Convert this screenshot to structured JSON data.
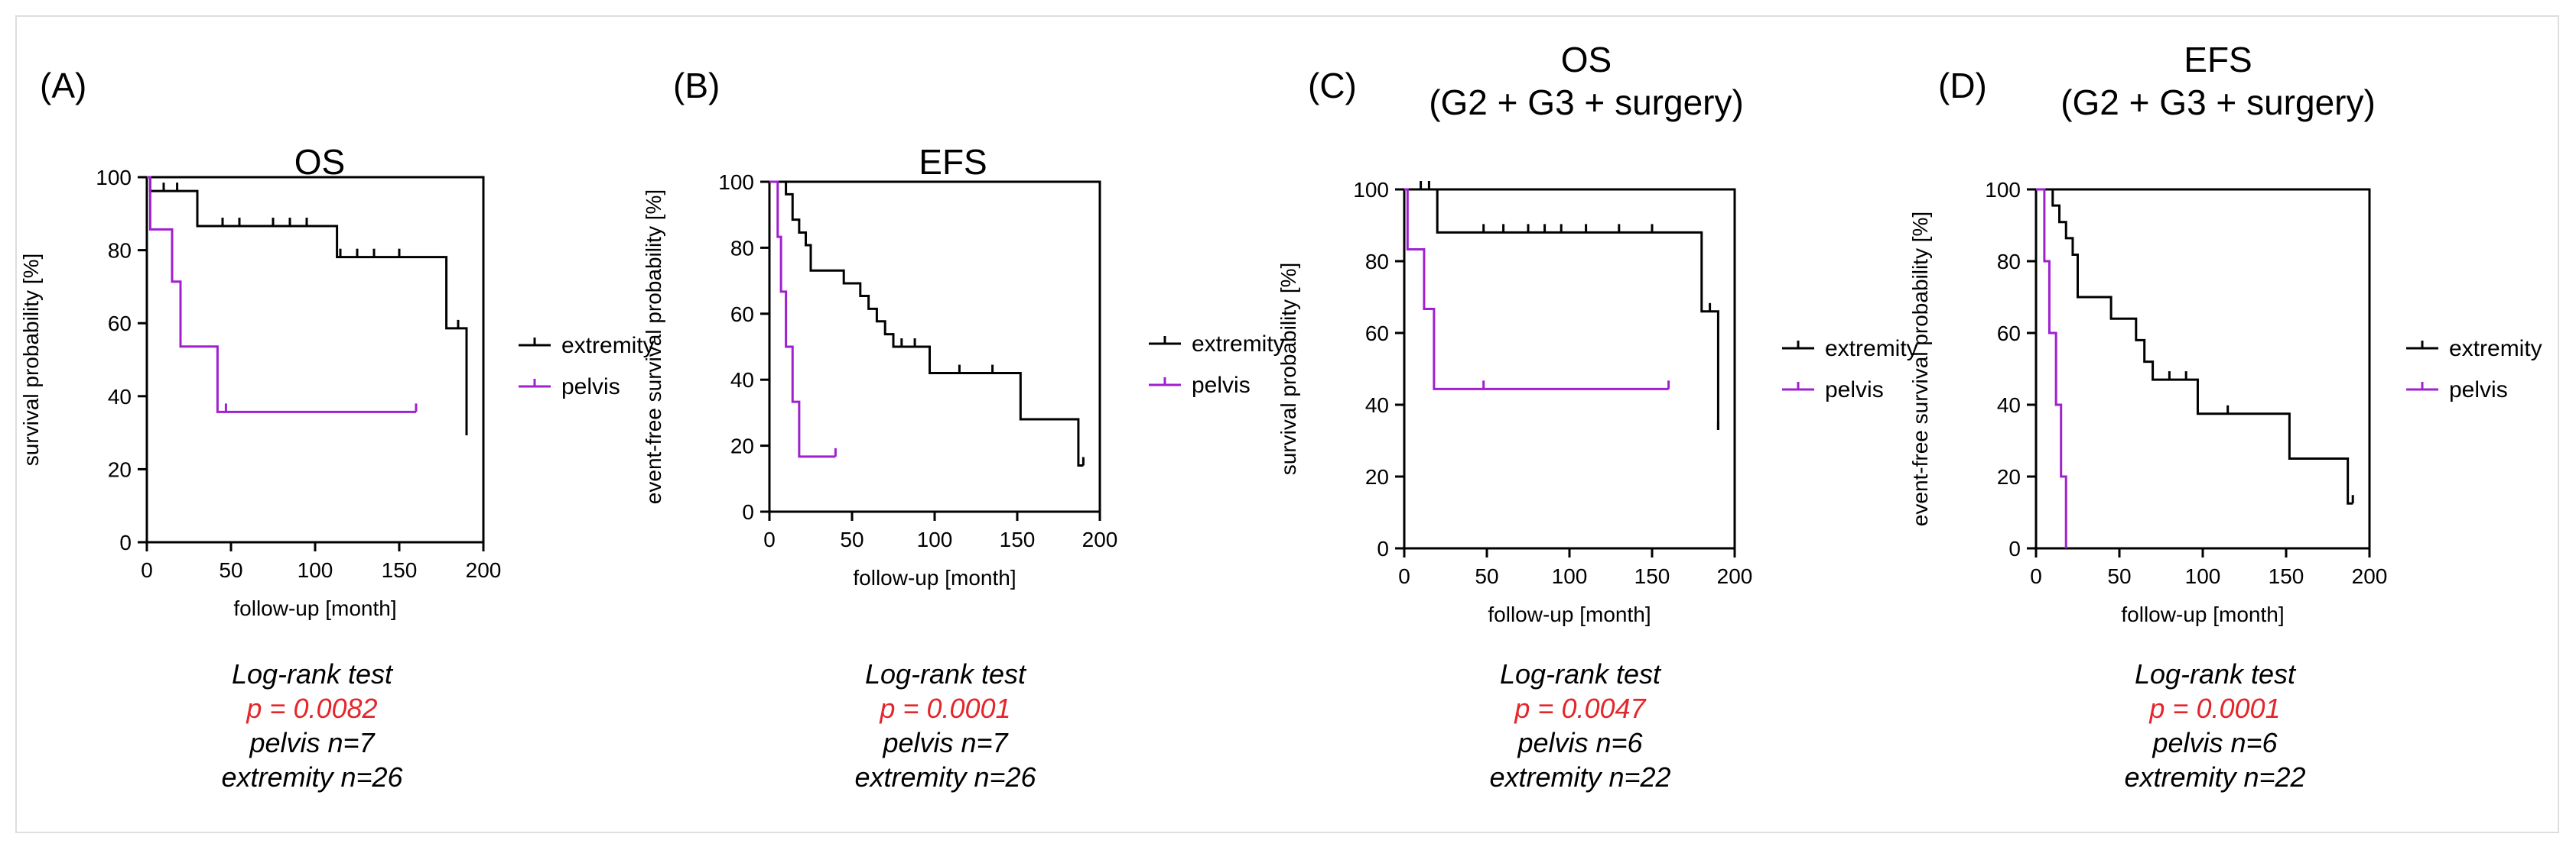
{
  "colors": {
    "extremity": "#000000",
    "pelvis": "#a020d0",
    "pvalue": "#e4262b",
    "border": "#dedede"
  },
  "chart_data": [
    {
      "type": "line",
      "panel_label": "(A)",
      "title": [
        "OS"
      ],
      "xlabel": "follow-up [month]",
      "ylabel": "survival probability [%]",
      "xlim": [
        0,
        200
      ],
      "ylim": [
        0,
        100
      ],
      "xticks": [
        0,
        50,
        100,
        150,
        200
      ],
      "yticks": [
        0,
        20,
        40,
        60,
        80,
        100
      ],
      "legend": [
        "extremity",
        "pelvis"
      ],
      "series": [
        {
          "name": "extremity",
          "steps": [
            [
              0,
              100
            ],
            [
              2,
              96.2
            ],
            [
              30,
              86.6
            ],
            [
              113,
              78.1
            ],
            [
              178,
              58.6
            ],
            [
              190,
              29.3
            ]
          ],
          "censored": [
            [
              10,
              96.2
            ],
            [
              18,
              96.2
            ],
            [
              45,
              86.6
            ],
            [
              55,
              86.6
            ],
            [
              75,
              86.6
            ],
            [
              85,
              86.6
            ],
            [
              95,
              86.6
            ],
            [
              115,
              78.1
            ],
            [
              125,
              78.1
            ],
            [
              135,
              78.1
            ],
            [
              150,
              78.1
            ],
            [
              185,
              58.6
            ]
          ]
        },
        {
          "name": "pelvis",
          "steps": [
            [
              0,
              100
            ],
            [
              2,
              85.7
            ],
            [
              15,
              71.4
            ],
            [
              20,
              53.6
            ],
            [
              42,
              35.7
            ],
            [
              160,
              35.7
            ]
          ],
          "censored": [
            [
              47,
              35.7
            ],
            [
              160,
              35.7
            ]
          ]
        }
      ],
      "stats": {
        "test": "Log-rank test",
        "p": "p = 0.0082",
        "pelvis_n": "pelvis n=7",
        "extremity_n": "extremity n=26"
      }
    },
    {
      "type": "line",
      "panel_label": "(B)",
      "title": [
        "EFS"
      ],
      "xlabel": "follow-up [month]",
      "ylabel": "event-free survival probability [%]",
      "xlim": [
        0,
        200
      ],
      "ylim": [
        0,
        100
      ],
      "xticks": [
        0,
        50,
        100,
        150,
        200
      ],
      "yticks": [
        0,
        20,
        40,
        60,
        80,
        100
      ],
      "legend": [
        "extremity",
        "pelvis"
      ],
      "series": [
        {
          "name": "extremity",
          "steps": [
            [
              0,
              100
            ],
            [
              10,
              96.2
            ],
            [
              14,
              88.5
            ],
            [
              18,
              84.6
            ],
            [
              22,
              80.8
            ],
            [
              25,
              73.1
            ],
            [
              45,
              69.2
            ],
            [
              55,
              65.4
            ],
            [
              60,
              61.5
            ],
            [
              65,
              57.7
            ],
            [
              70,
              53.8
            ],
            [
              75,
              50.0
            ],
            [
              97,
              42.0
            ],
            [
              152,
              28.0
            ],
            [
              187,
              14.0
            ],
            [
              190,
              14.0
            ]
          ],
          "censored": [
            [
              80,
              50.0
            ],
            [
              88,
              50.0
            ],
            [
              115,
              42.0
            ],
            [
              135,
              42.0
            ],
            [
              190,
              14.0
            ]
          ]
        },
        {
          "name": "pelvis",
          "steps": [
            [
              0,
              100
            ],
            [
              5,
              83.3
            ],
            [
              7,
              66.7
            ],
            [
              10,
              50.0
            ],
            [
              14,
              33.3
            ],
            [
              18,
              16.7
            ],
            [
              40,
              16.7
            ]
          ],
          "censored": [
            [
              40,
              16.7
            ]
          ]
        }
      ],
      "stats": {
        "test": "Log-rank test",
        "p": "p = 0.0001",
        "pelvis_n": "pelvis n=7",
        "extremity_n": "extremity n=26"
      }
    },
    {
      "type": "line",
      "panel_label": "(C)",
      "title": [
        "OS",
        "(G2 + G3 + surgery)"
      ],
      "xlabel": "follow-up [month]",
      "ylabel": "survival probability [%]",
      "xlim": [
        0,
        200
      ],
      "ylim": [
        0,
        100
      ],
      "xticks": [
        0,
        50,
        100,
        150,
        200
      ],
      "yticks": [
        0,
        20,
        40,
        60,
        80,
        100
      ],
      "legend": [
        "extremity",
        "pelvis"
      ],
      "series": [
        {
          "name": "extremity",
          "steps": [
            [
              0,
              100
            ],
            [
              20,
              88.0
            ],
            [
              180,
              66.0
            ],
            [
              190,
              33.0
            ]
          ],
          "censored": [
            [
              10,
              100
            ],
            [
              15,
              100
            ],
            [
              48,
              88.0
            ],
            [
              60,
              88.0
            ],
            [
              75,
              88.0
            ],
            [
              85,
              88.0
            ],
            [
              95,
              88.0
            ],
            [
              110,
              88.0
            ],
            [
              130,
              88.0
            ],
            [
              150,
              88.0
            ],
            [
              185,
              66.0
            ],
            [
              190,
              33.0
            ]
          ]
        },
        {
          "name": "pelvis",
          "steps": [
            [
              0,
              100
            ],
            [
              2,
              83.3
            ],
            [
              12,
              66.7
            ],
            [
              18,
              44.4
            ],
            [
              160,
              44.4
            ]
          ],
          "censored": [
            [
              48,
              44.4
            ],
            [
              160,
              44.4
            ]
          ]
        }
      ],
      "stats": {
        "test": "Log-rank test",
        "p": "p = 0.0047",
        "pelvis_n": "pelvis n=6",
        "extremity_n": "extremity n=22"
      }
    },
    {
      "type": "line",
      "panel_label": "(D)",
      "title": [
        "EFS",
        "(G2 + G3 + surgery)"
      ],
      "xlabel": "follow-up [month]",
      "ylabel": "event-free survival probability [%]",
      "xlim": [
        0,
        200
      ],
      "ylim": [
        0,
        100
      ],
      "xticks": [
        0,
        50,
        100,
        150,
        200
      ],
      "yticks": [
        0,
        20,
        40,
        60,
        80,
        100
      ],
      "legend": [
        "extremity",
        "pelvis"
      ],
      "series": [
        {
          "name": "extremity",
          "steps": [
            [
              0,
              100
            ],
            [
              10,
              95.5
            ],
            [
              14,
              90.9
            ],
            [
              18,
              86.4
            ],
            [
              22,
              81.8
            ],
            [
              25,
              70.0
            ],
            [
              45,
              64.0
            ],
            [
              60,
              58.0
            ],
            [
              65,
              52.0
            ],
            [
              70,
              47.0
            ],
            [
              97,
              37.5
            ],
            [
              152,
              25.0
            ],
            [
              187,
              12.5
            ],
            [
              190,
              12.5
            ]
          ],
          "censored": [
            [
              80,
              47.0
            ],
            [
              90,
              47.0
            ],
            [
              115,
              37.5
            ],
            [
              190,
              12.5
            ]
          ]
        },
        {
          "name": "pelvis",
          "steps": [
            [
              0,
              100
            ],
            [
              5,
              80.0
            ],
            [
              8,
              60.0
            ],
            [
              12,
              40.0
            ],
            [
              15,
              20.0
            ],
            [
              18,
              0
            ]
          ],
          "censored": []
        }
      ],
      "stats": {
        "test": "Log-rank test",
        "p": "p = 0.0001",
        "pelvis_n": "pelvis n=6",
        "extremity_n": "extremity n=22"
      }
    }
  ]
}
